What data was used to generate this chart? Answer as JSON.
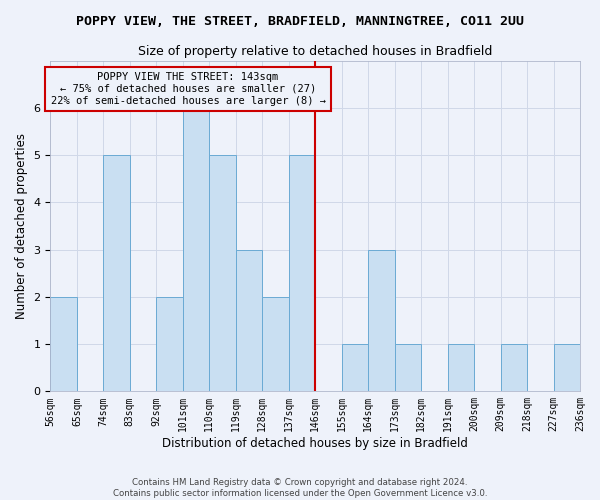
{
  "title": "POPPY VIEW, THE STREET, BRADFIELD, MANNINGTREE, CO11 2UU",
  "subtitle": "Size of property relative to detached houses in Bradfield",
  "xlabel": "Distribution of detached houses by size in Bradfield",
  "ylabel": "Number of detached properties",
  "bar_values": [
    2,
    0,
    5,
    0,
    2,
    6,
    5,
    3,
    2,
    5,
    0,
    1,
    3,
    1,
    0,
    1,
    0,
    1,
    0,
    1
  ],
  "bar_labels": [
    "56sqm",
    "65sqm",
    "74sqm",
    "83sqm",
    "92sqm",
    "101sqm",
    "110sqm",
    "119sqm",
    "128sqm",
    "137sqm",
    "146sqm",
    "155sqm",
    "164sqm",
    "173sqm",
    "182sqm",
    "191sqm",
    "200sqm",
    "209sqm",
    "218sqm",
    "227sqm",
    "236sqm"
  ],
  "bar_color": "#c9dff2",
  "bar_edge_color": "#6aaad4",
  "grid_color": "#d0d8e8",
  "vline_color": "#cc0000",
  "annotation_text": "POPPY VIEW THE STREET: 143sqm\n← 75% of detached houses are smaller (27)\n22% of semi-detached houses are larger (8) →",
  "annotation_box_color": "#cc0000",
  "ylim": [
    0,
    7
  ],
  "yticks": [
    0,
    1,
    2,
    3,
    4,
    5,
    6
  ],
  "footer": "Contains HM Land Registry data © Crown copyright and database right 2024.\nContains public sector information licensed under the Open Government Licence v3.0.",
  "bg_color": "#eef2fa",
  "title_fontsize": 9.5,
  "subtitle_fontsize": 9,
  "ylabel_fontsize": 8.5,
  "xlabel_fontsize": 8.5,
  "tick_fontsize": 7,
  "ytick_fontsize": 8
}
